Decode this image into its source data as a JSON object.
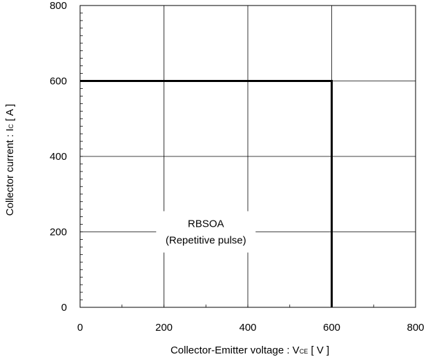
{
  "chart_data": {
    "type": "line",
    "title": "",
    "xlabel": {
      "text": "Collector-Emitter voltage : V",
      "sub": "CE",
      "suffix": " [ V ]"
    },
    "ylabel": {
      "text": "Collector current : I",
      "sub": "C",
      "suffix": " [ A ]"
    },
    "xlim": [
      0,
      800
    ],
    "ylim": [
      0,
      800
    ],
    "xticks": [
      0,
      200,
      400,
      600,
      800
    ],
    "yticks": [
      0,
      200,
      400,
      600,
      800
    ],
    "xtick_labels": [
      "0",
      "200",
      "400",
      "600",
      "800"
    ],
    "ytick_labels": [
      "0",
      "200",
      "400",
      "600",
      "800"
    ],
    "grid": true,
    "series": [
      {
        "x": [
          0,
          600,
          600
        ],
        "y": [
          600,
          600,
          0
        ],
        "color": "#000000"
      }
    ],
    "annotation": {
      "lines": [
        "RBSOA",
        "(Repetitive pulse)"
      ],
      "x": 300,
      "y": 200
    }
  }
}
